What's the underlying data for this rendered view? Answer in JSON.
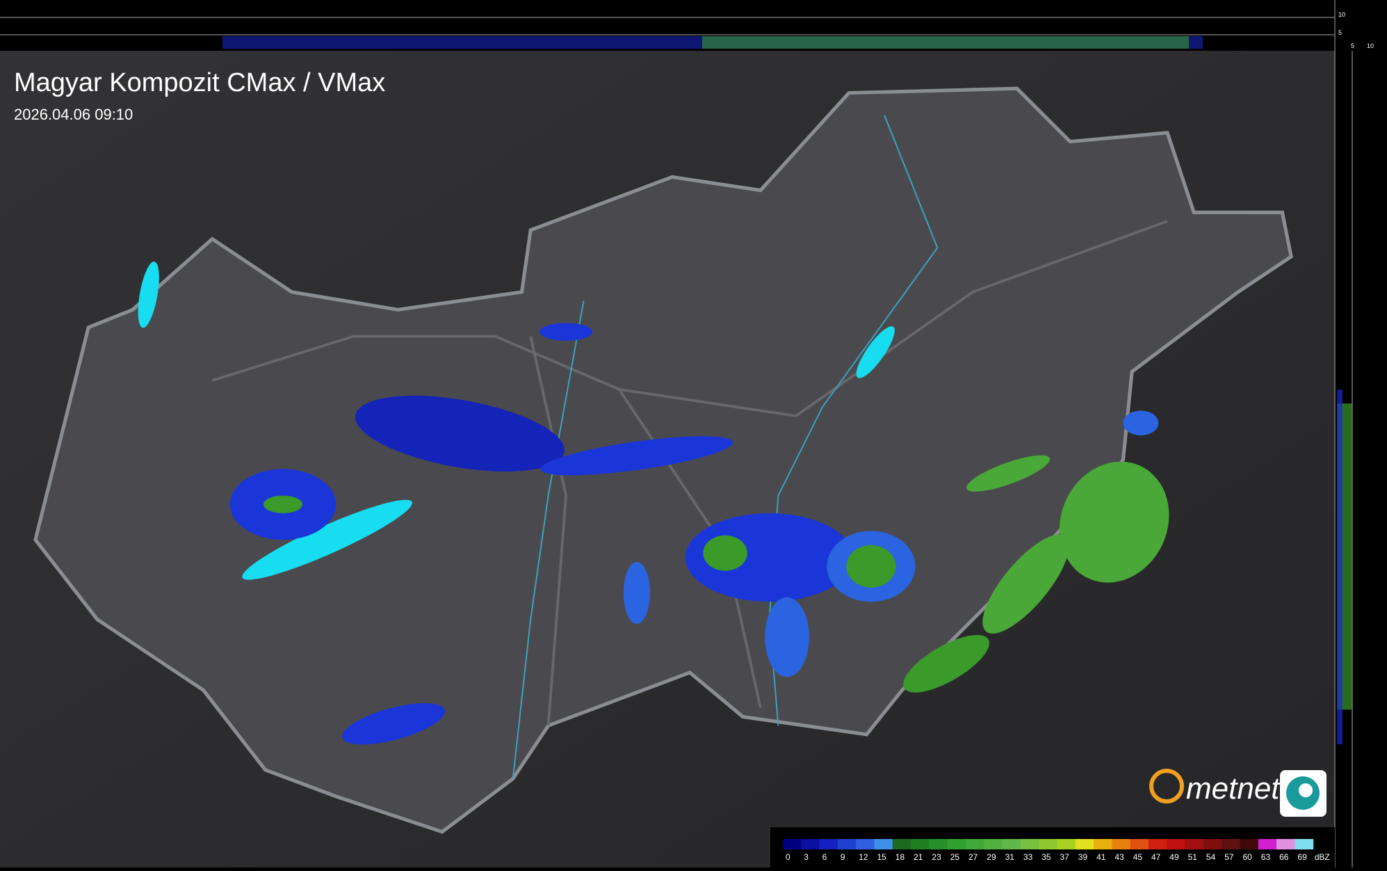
{
  "header": {
    "title": "Magyar Kompozit CMax / VMax",
    "timestamp": "2026.04.06 09:10"
  },
  "side_axis": {
    "top_labels": [
      "10",
      "5"
    ],
    "bottom_labels": [
      "5",
      "10"
    ]
  },
  "logo": {
    "text": "metnet"
  },
  "legend": {
    "unit": "dBZ",
    "labels": [
      "0",
      "3",
      "6",
      "9",
      "12",
      "15",
      "18",
      "21",
      "23",
      "25",
      "27",
      "29",
      "31",
      "33",
      "35",
      "37",
      "39",
      "41",
      "43",
      "45",
      "47",
      "49",
      "51",
      "54",
      "57",
      "60",
      "63",
      "66",
      "69"
    ],
    "colors": [
      "#000080",
      "#0a10a0",
      "#1420c0",
      "#2040d0",
      "#3060e0",
      "#4090e8",
      "#1a6a20",
      "#208020",
      "#289028",
      "#30a030",
      "#40a838",
      "#50b040",
      "#60b848",
      "#78c040",
      "#90c830",
      "#a8d020",
      "#e0e020",
      "#e8b010",
      "#e88010",
      "#e05010",
      "#d02010",
      "#c01010",
      "#a01010",
      "#801010",
      "#601010",
      "#400808",
      "#d020d0",
      "#e090e0",
      "#80e0f0"
    ]
  }
}
